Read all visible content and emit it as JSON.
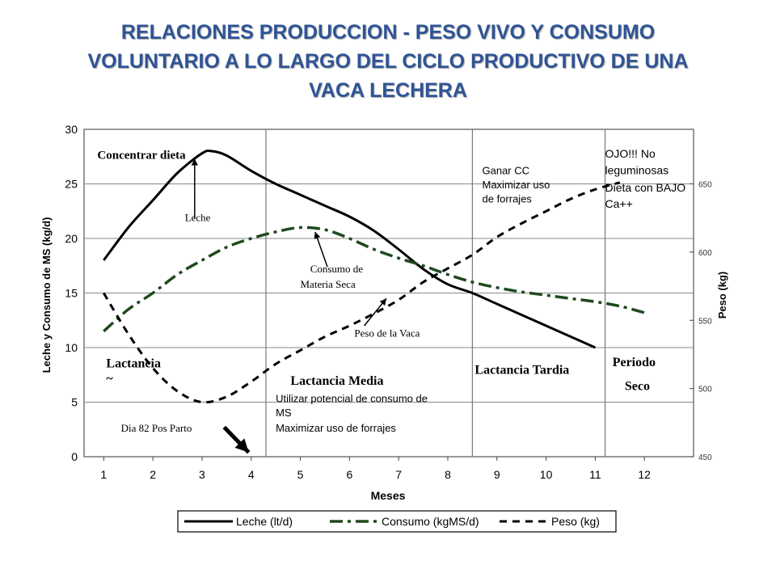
{
  "slide": {
    "title_lines": [
      "RELACIONES PRODUCCION - PESO VIVO Y CONSUMO",
      "VOLUNTARIO A LO LARGO DEL CICLO PRODUCTIVO DE UNA",
      "VACA LECHERA"
    ],
    "title_color": "#2f5496"
  },
  "chart_data": {
    "type": "line",
    "xlabel": "Meses",
    "ylabel_left": "Leche y Consumo de MS (kg/d)",
    "ylabel_right": "Peso (kg)",
    "x_ticks": [
      1,
      2,
      3,
      4,
      5,
      6,
      7,
      8,
      9,
      10,
      11,
      12
    ],
    "x_range": [
      0.6,
      13
    ],
    "ylim_left": [
      0,
      30
    ],
    "y_ticks_left": [
      0,
      5,
      10,
      15,
      20,
      25,
      30
    ],
    "ylim_right": [
      450,
      690
    ],
    "y_ticks_right": [
      450,
      500,
      550,
      600,
      650
    ],
    "grid": true,
    "phase_dividers_month": [
      4.3,
      8.5,
      11.2
    ],
    "series": [
      {
        "name": "Leche (lt/d)",
        "axis": "left",
        "style": "solid",
        "color": "#000000",
        "x": [
          1,
          1.5,
          2,
          2.5,
          3,
          3.2,
          3.5,
          4,
          4.5,
          5,
          5.5,
          6,
          6.5,
          7,
          7.5,
          8,
          8.5,
          9,
          9.5,
          10,
          10.5,
          11
        ],
        "values": [
          18,
          21,
          23.5,
          26,
          27.8,
          28,
          27.6,
          26.2,
          25,
          24,
          23,
          22,
          20.7,
          19,
          17.2,
          15.8,
          15,
          14,
          13,
          12,
          11,
          10
        ]
      },
      {
        "name": "Consumo (kgMS/d)",
        "axis": "left",
        "style": "dash-dot",
        "color": "#1f4a1f",
        "x": [
          1,
          1.5,
          2,
          2.5,
          3,
          3.5,
          4,
          4.5,
          5,
          5.5,
          6,
          6.5,
          7,
          7.5,
          8,
          8.5,
          9,
          9.5,
          10,
          10.5,
          11,
          11.5,
          12
        ],
        "values": [
          11.5,
          13.5,
          15,
          16.7,
          18,
          19.2,
          20,
          20.6,
          21,
          20.8,
          20,
          19,
          18.2,
          17.5,
          16.7,
          16,
          15.5,
          15.1,
          14.8,
          14.5,
          14.2,
          13.8,
          13.2
        ]
      },
      {
        "name": "Peso (kg)",
        "axis": "right",
        "style": "dashed",
        "color": "#000000",
        "x": [
          1,
          1.5,
          2,
          2.5,
          3,
          3.5,
          4,
          4.5,
          5,
          5.5,
          6,
          6.5,
          7,
          7.5,
          8,
          8.5,
          9,
          9.5,
          10,
          10.5,
          11,
          11.5
        ],
        "values": [
          570,
          540,
          515,
          498,
          490,
          494,
          505,
          518,
          528,
          538,
          546,
          555,
          565,
          578,
          588,
          598,
          611,
          621,
          630,
          639,
          646,
          651
        ]
      }
    ],
    "phase_labels": [
      {
        "text": "Lactancia",
        "month": 1.05,
        "y": 8.2
      },
      {
        "text": "~",
        "month": 1.05,
        "y": 6.8
      },
      {
        "text": "Lactancia Media",
        "month": 4.8,
        "y": 6.6
      },
      {
        "text": "Lactancia Tardia",
        "month": 8.55,
        "y": 7.6
      },
      {
        "text": "Periodo",
        "month": 11.35,
        "y": 8.3
      },
      {
        "text": "Seco",
        "month": 11.6,
        "y": 6.1
      }
    ],
    "annotations": [
      {
        "text": "Concentrar dieta",
        "month": 0.87,
        "y": 27.3,
        "font": "serif-bold",
        "size": 15
      },
      {
        "text": "Leche",
        "month": 2.65,
        "y": 21.6,
        "font": "serif",
        "size": 13
      },
      {
        "text": "Consumo de",
        "month": 5.2,
        "y": 16.9,
        "font": "serif",
        "size": 13
      },
      {
        "text": "Materia Seca",
        "month": 5.0,
        "y": 15.5,
        "font": "serif",
        "size": 13
      },
      {
        "text": "Peso de la Vaca",
        "month": 6.1,
        "y": 11.0,
        "font": "serif",
        "size": 13
      },
      {
        "text": "Dia 82 Pos Parto",
        "month": 1.35,
        "y": 2.3,
        "font": "serif",
        "size": 13
      },
      {
        "text": "Ganar CC",
        "month": 8.7,
        "y": 25.9,
        "font": "sans",
        "size": 13
      },
      {
        "text": "Maximizar uso",
        "month": 8.7,
        "y": 24.6,
        "font": "sans",
        "size": 13
      },
      {
        "text": "de forrajes",
        "month": 8.7,
        "y": 23.3,
        "font": "sans",
        "size": 13
      },
      {
        "text": "OJO!!!   No",
        "month": 11.2,
        "y": 27.4,
        "font": "sans",
        "size": 14
      },
      {
        "text": "leguminosas",
        "month": 11.2,
        "y": 25.9,
        "font": "sans",
        "size": 14
      },
      {
        "text": "Dieta con BAJO",
        "month": 11.2,
        "y": 24.3,
        "font": "sans",
        "size": 14
      },
      {
        "text": "Ca++",
        "month": 11.2,
        "y": 22.8,
        "font": "sans",
        "size": 14
      },
      {
        "text": "Utilizar potencial de consumo de",
        "month": 4.5,
        "y": 5.0,
        "font": "sans",
        "size": 13
      },
      {
        "text": "MS",
        "month": 4.5,
        "y": 3.7,
        "font": "sans",
        "size": 13
      },
      {
        "text": "Maximizar uso de forrajes",
        "month": 4.5,
        "y": 2.3,
        "font": "sans",
        "size": 13
      }
    ],
    "legend": {
      "placement": "bottom",
      "entries": [
        {
          "label": "Leche (lt/d)",
          "style": "solid"
        },
        {
          "label": "Consumo (kgMS/d)",
          "style": "dash-dot"
        },
        {
          "label": "Peso (kg)",
          "style": "dashed"
        }
      ]
    }
  }
}
